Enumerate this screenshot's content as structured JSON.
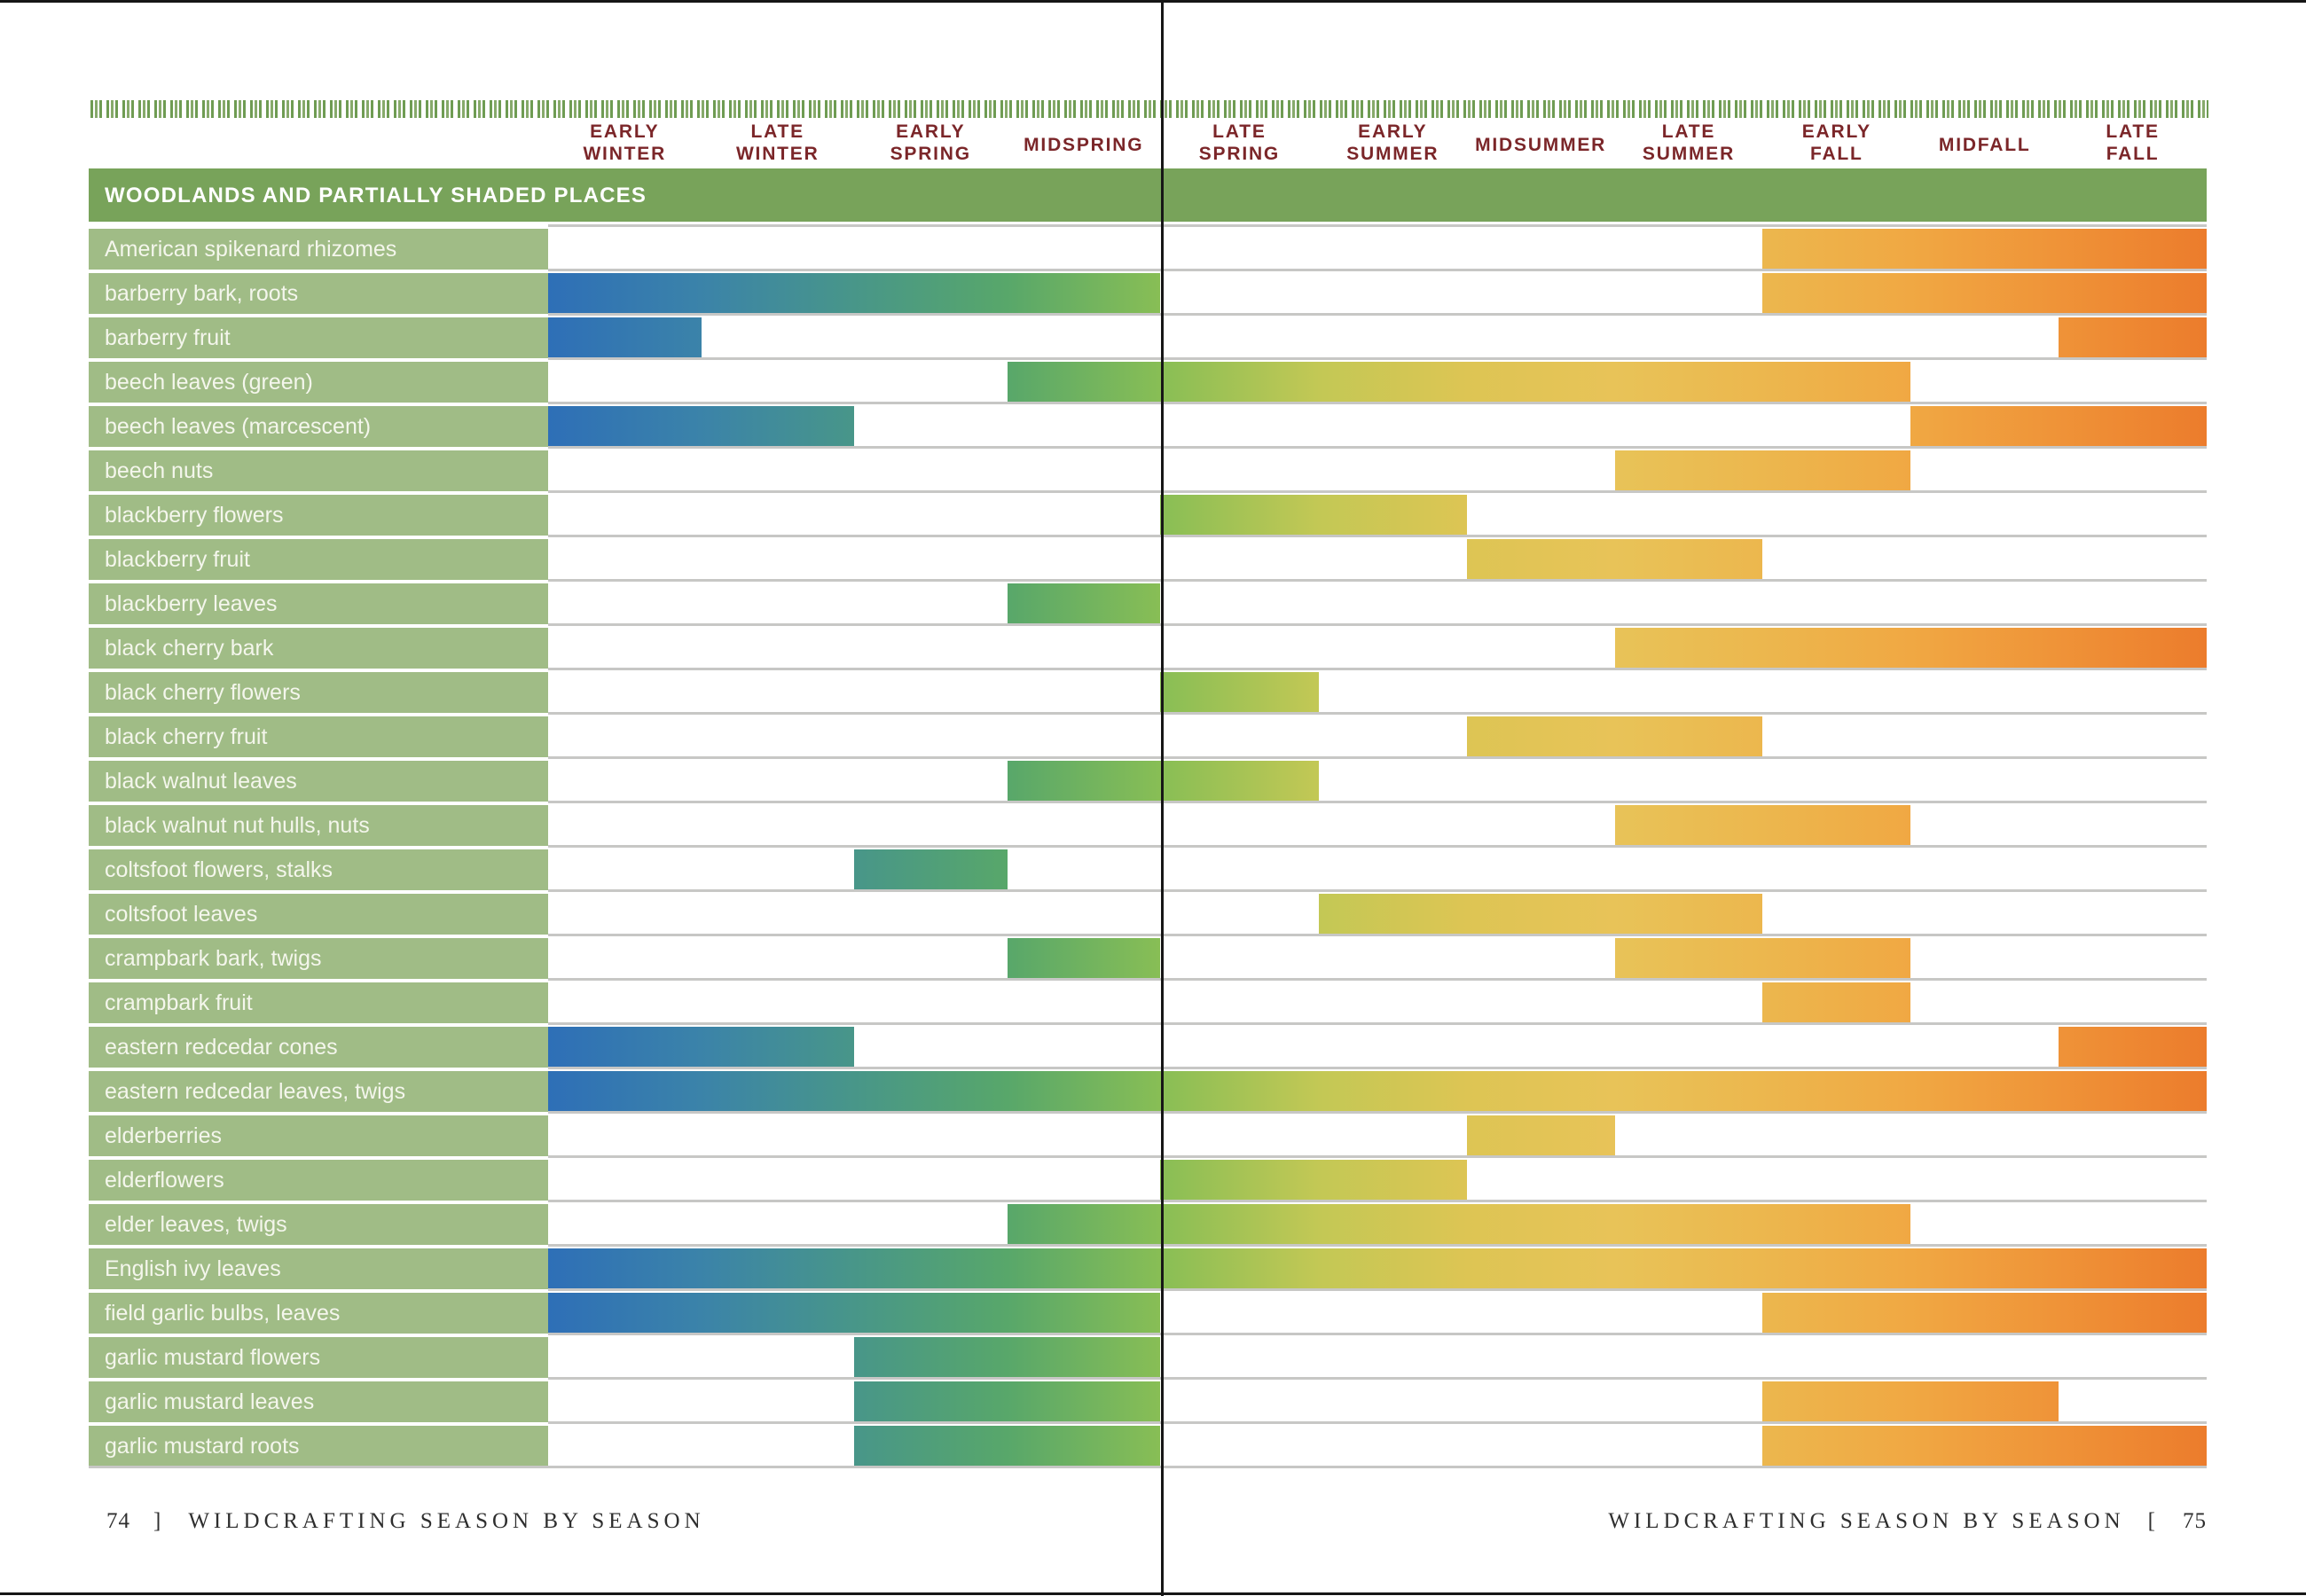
{
  "page": {
    "left_number": "74",
    "right_number": "75",
    "left_bracket": "]",
    "right_bracket": "[",
    "footer_title": "WILDCRAFTING SEASON BY SEASON"
  },
  "chart_data": {
    "type": "bar",
    "subtype": "horizontal-seasonal-range-timeline",
    "title": "WOODLANDS AND PARTIALLY SHADED PLACES",
    "columns": [
      "EARLY WINTER",
      "LATE WINTER",
      "EARLY SPRING",
      "MIDSPRING",
      "LATE SPRING",
      "EARLY SUMMER",
      "MIDSUMMER",
      "LATE SUMMER",
      "EARLY FALL",
      "MIDFALL",
      "LATE FALL"
    ],
    "unit": "season column index; 0 = start of Early Winter, 11 = end of Late Fall",
    "rows": [
      {
        "label": "American spikenard rhizomes",
        "ranges": [
          [
            8,
            11
          ]
        ]
      },
      {
        "label": "barberry bark, roots",
        "ranges": [
          [
            0,
            4
          ],
          [
            8,
            11
          ]
        ]
      },
      {
        "label": "barberry fruit",
        "ranges": [
          [
            0,
            1
          ],
          [
            10,
            11
          ]
        ]
      },
      {
        "label": "beech leaves (green)",
        "ranges": [
          [
            3,
            9
          ]
        ]
      },
      {
        "label": "beech leaves (marcescent)",
        "ranges": [
          [
            0,
            2
          ],
          [
            9,
            11
          ]
        ]
      },
      {
        "label": "beech nuts",
        "ranges": [
          [
            7,
            9
          ]
        ]
      },
      {
        "label": "blackberry flowers",
        "ranges": [
          [
            4,
            6
          ]
        ]
      },
      {
        "label": "blackberry fruit",
        "ranges": [
          [
            6,
            8
          ]
        ]
      },
      {
        "label": "blackberry leaves",
        "ranges": [
          [
            3,
            4
          ]
        ]
      },
      {
        "label": "black cherry bark",
        "ranges": [
          [
            7,
            11
          ]
        ]
      },
      {
        "label": "black cherry flowers",
        "ranges": [
          [
            4,
            5
          ]
        ]
      },
      {
        "label": "black cherry fruit",
        "ranges": [
          [
            6,
            8
          ]
        ]
      },
      {
        "label": "black walnut leaves",
        "ranges": [
          [
            3,
            5
          ]
        ]
      },
      {
        "label": "black walnut nut hulls, nuts",
        "ranges": [
          [
            7,
            9
          ]
        ]
      },
      {
        "label": "coltsfoot flowers, stalks",
        "ranges": [
          [
            2,
            3
          ]
        ]
      },
      {
        "label": "coltsfoot leaves",
        "ranges": [
          [
            5,
            8
          ]
        ]
      },
      {
        "label": "crampbark bark, twigs",
        "ranges": [
          [
            3,
            4
          ],
          [
            7,
            9
          ]
        ]
      },
      {
        "label": "crampbark fruit",
        "ranges": [
          [
            8,
            9
          ]
        ]
      },
      {
        "label": "eastern redcedar cones",
        "ranges": [
          [
            0,
            2
          ],
          [
            10,
            11
          ]
        ]
      },
      {
        "label": "eastern redcedar leaves, twigs",
        "ranges": [
          [
            0,
            11
          ]
        ]
      },
      {
        "label": "elderberries",
        "ranges": [
          [
            6,
            7
          ]
        ]
      },
      {
        "label": "elderflowers",
        "ranges": [
          [
            4,
            6
          ]
        ]
      },
      {
        "label": "elder leaves, twigs",
        "ranges": [
          [
            3,
            9
          ]
        ]
      },
      {
        "label": "English ivy leaves",
        "ranges": [
          [
            0,
            11
          ]
        ]
      },
      {
        "label": "field garlic bulbs, leaves",
        "ranges": [
          [
            0,
            4
          ],
          [
            8,
            11
          ]
        ]
      },
      {
        "label": "garlic mustard flowers",
        "ranges": [
          [
            2,
            4
          ]
        ]
      },
      {
        "label": "garlic mustard leaves",
        "ranges": [
          [
            2,
            4
          ],
          [
            8,
            10
          ]
        ]
      },
      {
        "label": "garlic mustard roots",
        "ranges": [
          [
            2,
            4
          ],
          [
            8,
            11
          ]
        ]
      }
    ],
    "gradient_stops": [
      [
        0.0,
        "#2e6fb7"
      ],
      [
        0.091,
        "#3b83a9"
      ],
      [
        0.182,
        "#489689"
      ],
      [
        0.273,
        "#58a76a"
      ],
      [
        0.364,
        "#88be55"
      ],
      [
        0.455,
        "#c3c855"
      ],
      [
        0.545,
        "#ddc554"
      ],
      [
        0.636,
        "#e8c358"
      ],
      [
        0.727,
        "#ecb74e"
      ],
      [
        0.818,
        "#f0a843"
      ],
      [
        0.909,
        "#ef9338"
      ],
      [
        1.0,
        "#ec7c2c"
      ]
    ],
    "legend": "off",
    "grid": "gray row separator lines only"
  },
  "colors": {
    "season_header_text": "#7b2629",
    "section_header_bg": "#78a35a",
    "section_header_text": "#ffffff",
    "row_label_bg": "#a0bc86",
    "row_label_text": "#f4f6ec",
    "separator_gray": "#c7c7c5",
    "ribbon_green_dark": "#6f9c53",
    "ribbon_green_light": "#87aa6b",
    "fold_black": "#161616",
    "footer_text": "#2e2e2e",
    "page_bg": "#ffffff"
  }
}
